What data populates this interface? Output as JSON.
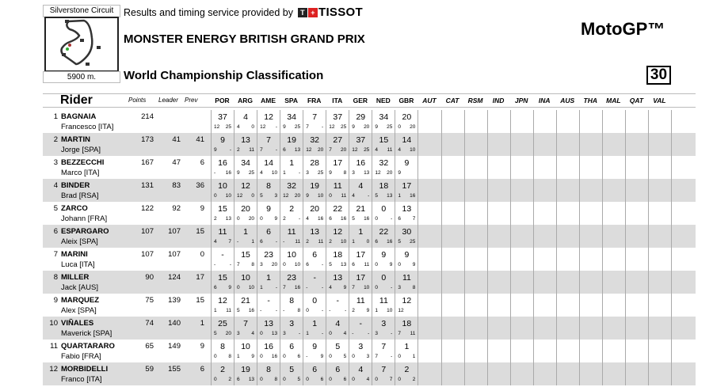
{
  "header": {
    "circuit_name": "Silverstone Circuit",
    "circuit_length": "5900 m.",
    "timing_text": "Results and timing service provided by",
    "sponsor_logo": "TISSOT",
    "event_title": "MONSTER ENERGY BRITISH GRAND PRIX",
    "classification_title": "World Championship Classification",
    "category": "MotoGP™",
    "round": "30"
  },
  "columns": {
    "rider": "Rider",
    "points": "Points",
    "leader": "Leader",
    "prev": "Prev"
  },
  "races": [
    "POR",
    "ARG",
    "AME",
    "SPA",
    "FRA",
    "ITA",
    "GER",
    "NED",
    "GBR",
    "AUT",
    "CAT",
    "RSM",
    "IND",
    "JPN",
    "INA",
    "AUS",
    "THA",
    "MAL",
    "QAT",
    "VAL"
  ],
  "row_colors": {
    "odd": "#ffffff",
    "even": "#dcdcdc"
  },
  "riders": [
    {
      "pos": "1",
      "surname": "BAGNAIA",
      "first": "Francesco [ITA]",
      "points": "214",
      "leader": "",
      "prev": "",
      "results": [
        [
          "37",
          "12",
          "25"
        ],
        [
          "4",
          "4",
          "0"
        ],
        [
          "12",
          "12",
          "-"
        ],
        [
          "34",
          "9",
          "25"
        ],
        [
          "7",
          "7",
          "-"
        ],
        [
          "37",
          "12",
          "25"
        ],
        [
          "29",
          "9",
          "20"
        ],
        [
          "34",
          "9",
          "25"
        ],
        [
          "20",
          "0",
          "20"
        ]
      ]
    },
    {
      "pos": "2",
      "surname": "MARTIN",
      "first": "Jorge [SPA]",
      "points": "173",
      "leader": "41",
      "prev": "41",
      "results": [
        [
          "9",
          "9",
          "-"
        ],
        [
          "13",
          "2",
          "11"
        ],
        [
          "7",
          "7",
          "-"
        ],
        [
          "19",
          "6",
          "13"
        ],
        [
          "32",
          "12",
          "20"
        ],
        [
          "27",
          "7",
          "20"
        ],
        [
          "37",
          "12",
          "25"
        ],
        [
          "15",
          "4",
          "11"
        ],
        [
          "14",
          "4",
          "10"
        ]
      ]
    },
    {
      "pos": "3",
      "surname": "BEZZECCHI",
      "first": "Marco [ITA]",
      "points": "167",
      "leader": "47",
      "prev": "6",
      "results": [
        [
          "16",
          "-",
          "16"
        ],
        [
          "34",
          "9",
          "25"
        ],
        [
          "14",
          "4",
          "10"
        ],
        [
          "1",
          "1",
          "-"
        ],
        [
          "28",
          "3",
          "25"
        ],
        [
          "17",
          "9",
          "8"
        ],
        [
          "16",
          "3",
          "13"
        ],
        [
          "32",
          "12",
          "20"
        ],
        [
          "9",
          "9",
          ""
        ]
      ]
    },
    {
      "pos": "4",
      "surname": "BINDER",
      "first": "Brad [RSA]",
      "points": "131",
      "leader": "83",
      "prev": "36",
      "results": [
        [
          "10",
          "0",
          "10"
        ],
        [
          "12",
          "12",
          "0"
        ],
        [
          "8",
          "5",
          "3"
        ],
        [
          "32",
          "12",
          "20"
        ],
        [
          "19",
          "9",
          "10"
        ],
        [
          "11",
          "0",
          "11"
        ],
        [
          "4",
          "4",
          "-"
        ],
        [
          "18",
          "5",
          "13"
        ],
        [
          "17",
          "1",
          "16"
        ]
      ]
    },
    {
      "pos": "5",
      "surname": "ZARCO",
      "first": "Johann [FRA]",
      "points": "122",
      "leader": "92",
      "prev": "9",
      "results": [
        [
          "15",
          "2",
          "13"
        ],
        [
          "20",
          "0",
          "20"
        ],
        [
          "9",
          "0",
          "9"
        ],
        [
          "2",
          "2",
          "-"
        ],
        [
          "20",
          "4",
          "16"
        ],
        [
          "22",
          "6",
          "16"
        ],
        [
          "21",
          "5",
          "16"
        ],
        [
          "0",
          "0",
          "-"
        ],
        [
          "13",
          "6",
          "7"
        ]
      ]
    },
    {
      "pos": "6",
      "surname": "ESPARGARO",
      "first": "Aleix [SPA]",
      "points": "107",
      "leader": "107",
      "prev": "15",
      "results": [
        [
          "11",
          "4",
          "7"
        ],
        [
          "1",
          "-",
          "1"
        ],
        [
          "6",
          "6",
          "-"
        ],
        [
          "11",
          "-",
          "11"
        ],
        [
          "13",
          "2",
          "11"
        ],
        [
          "12",
          "2",
          "10"
        ],
        [
          "1",
          "1",
          "0"
        ],
        [
          "22",
          "6",
          "16"
        ],
        [
          "30",
          "5",
          "25"
        ]
      ]
    },
    {
      "pos": "7",
      "surname": "MARINI",
      "first": "Luca [ITA]",
      "points": "107",
      "leader": "107",
      "prev": "0",
      "results": [
        [
          "-",
          "-",
          "-"
        ],
        [
          "15",
          "7",
          "8"
        ],
        [
          "23",
          "3",
          "20"
        ],
        [
          "10",
          "0",
          "10"
        ],
        [
          "6",
          "6",
          "-"
        ],
        [
          "18",
          "5",
          "13"
        ],
        [
          "17",
          "6",
          "11"
        ],
        [
          "9",
          "0",
          "9"
        ],
        [
          "9",
          "0",
          "9"
        ]
      ]
    },
    {
      "pos": "8",
      "surname": "MILLER",
      "first": "Jack [AUS]",
      "points": "90",
      "leader": "124",
      "prev": "17",
      "results": [
        [
          "15",
          "6",
          "9"
        ],
        [
          "10",
          "0",
          "10"
        ],
        [
          "1",
          "1",
          "-"
        ],
        [
          "23",
          "7",
          "16"
        ],
        [
          "-",
          "-",
          "-"
        ],
        [
          "13",
          "4",
          "9"
        ],
        [
          "17",
          "7",
          "10"
        ],
        [
          "0",
          "0",
          "-"
        ],
        [
          "11",
          "3",
          "8"
        ]
      ]
    },
    {
      "pos": "9",
      "surname": "MARQUEZ",
      "first": "Alex [SPA]",
      "points": "75",
      "leader": "139",
      "prev": "15",
      "results": [
        [
          "12",
          "1",
          "11"
        ],
        [
          "21",
          "5",
          "16"
        ],
        [
          "-",
          "-",
          "-"
        ],
        [
          "8",
          "-",
          "8"
        ],
        [
          "0",
          "0",
          "-"
        ],
        [
          "-",
          "-",
          "-"
        ],
        [
          "11",
          "2",
          "9"
        ],
        [
          "11",
          "1",
          "10"
        ],
        [
          "12",
          "12",
          ""
        ]
      ]
    },
    {
      "pos": "10",
      "surname": "VIÑALES",
      "first": "Maverick [SPA]",
      "points": "74",
      "leader": "140",
      "prev": "1",
      "results": [
        [
          "25",
          "5",
          "20"
        ],
        [
          "7",
          "3",
          "4"
        ],
        [
          "13",
          "0",
          "13"
        ],
        [
          "3",
          "3",
          "-"
        ],
        [
          "1",
          "1",
          "-"
        ],
        [
          "4",
          "0",
          "4"
        ],
        [
          "-",
          "-",
          "-"
        ],
        [
          "3",
          "3",
          "-"
        ],
        [
          "18",
          "7",
          "11"
        ]
      ]
    },
    {
      "pos": "11",
      "surname": "QUARTARARO",
      "first": "Fabio [FRA]",
      "points": "65",
      "leader": "149",
      "prev": "9",
      "results": [
        [
          "8",
          "0",
          "8"
        ],
        [
          "10",
          "1",
          "9"
        ],
        [
          "16",
          "0",
          "16"
        ],
        [
          "6",
          "0",
          "6"
        ],
        [
          "9",
          "-",
          "9"
        ],
        [
          "5",
          "0",
          "5"
        ],
        [
          "3",
          "0",
          "3"
        ],
        [
          "7",
          "7",
          "-"
        ],
        [
          "1",
          "0",
          "1"
        ]
      ]
    },
    {
      "pos": "12",
      "surname": "MORBIDELLI",
      "first": "Franco [ITA]",
      "points": "59",
      "leader": "155",
      "prev": "6",
      "results": [
        [
          "2",
          "0",
          "2"
        ],
        [
          "19",
          "6",
          "13"
        ],
        [
          "8",
          "0",
          "8"
        ],
        [
          "5",
          "0",
          "5"
        ],
        [
          "6",
          "0",
          "6"
        ],
        [
          "6",
          "0",
          "6"
        ],
        [
          "4",
          "0",
          "4"
        ],
        [
          "7",
          "0",
          "7"
        ],
        [
          "2",
          "0",
          "2"
        ]
      ]
    }
  ]
}
